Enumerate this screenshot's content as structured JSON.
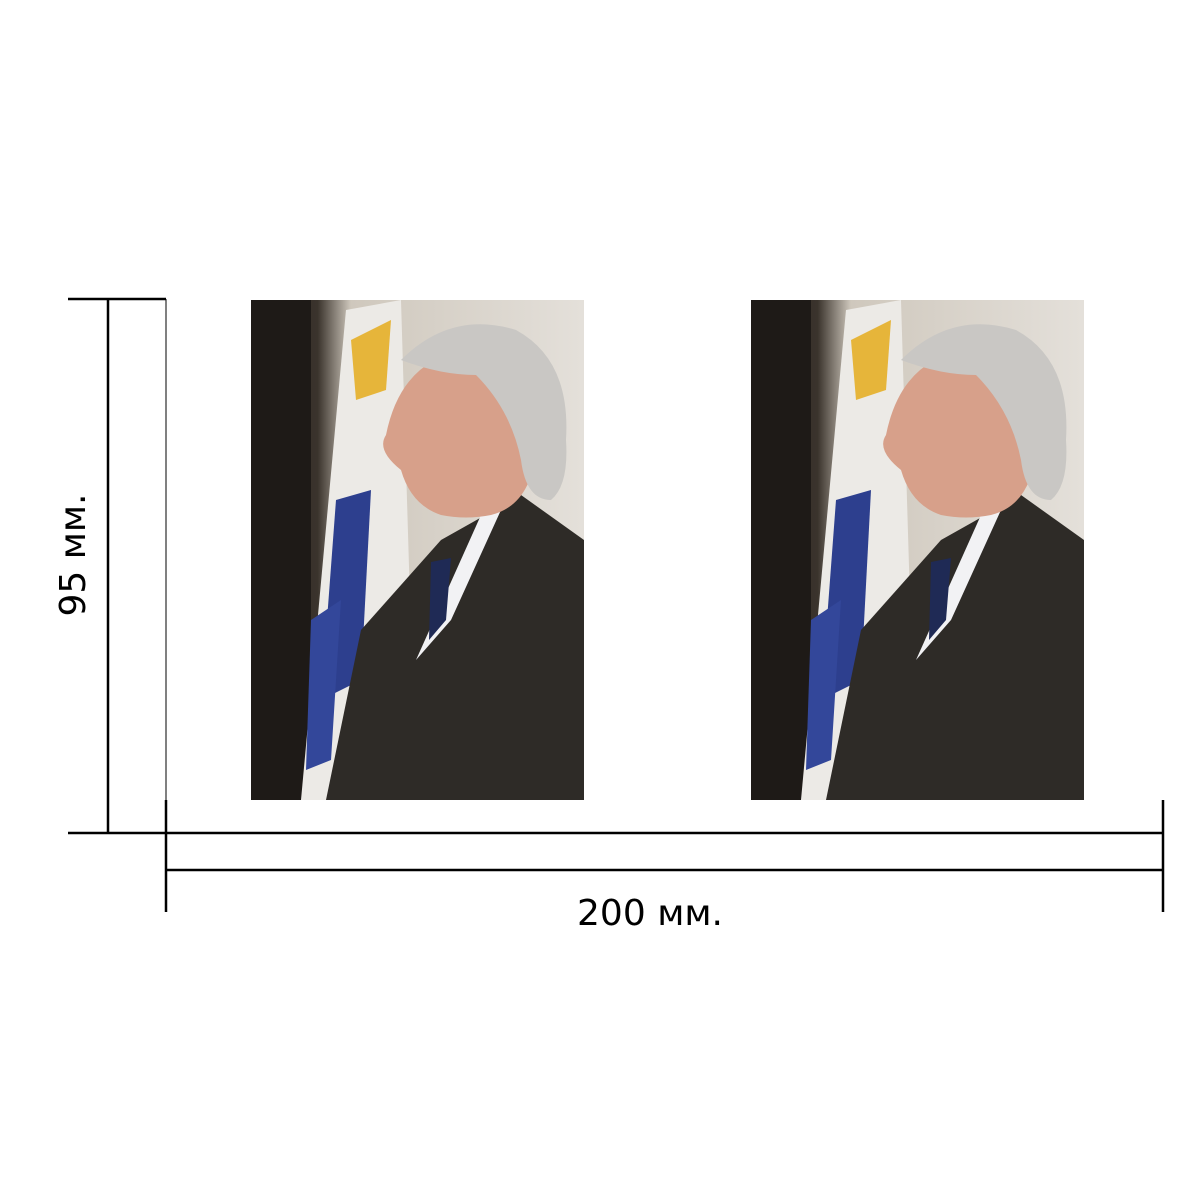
{
  "dimensions": {
    "height_label": "95 мм.",
    "width_label": "200 мм."
  }
}
